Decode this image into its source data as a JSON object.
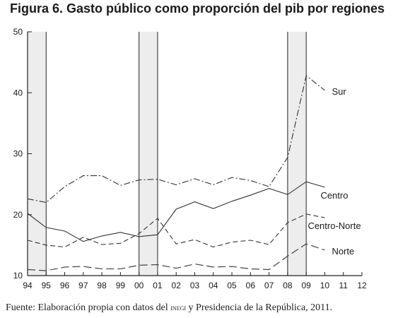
{
  "title": "Figura 6. Gasto público como proporción del pib por regiones",
  "source": {
    "prefix": "Fuente: Elaboración propia con datos del ",
    "inegi": "inegi",
    "suffix": " y Presidencia de la República, 2011."
  },
  "chart_data": {
    "type": "line",
    "title": "Figura 6. Gasto público como proporción del pib por regiones",
    "xlabel": "",
    "ylabel": "",
    "categories": [
      "94",
      "95",
      "96",
      "97",
      "98",
      "99",
      "00",
      "01",
      "02",
      "03",
      "04",
      "05",
      "06",
      "07",
      "08",
      "09",
      "10",
      "11",
      "12"
    ],
    "ylim": [
      10,
      50
    ],
    "yticks": [
      10,
      20,
      30,
      40,
      50
    ],
    "grid": false,
    "shaded_periods": [
      [
        "94",
        "95"
      ],
      [
        "00",
        "01"
      ],
      [
        "08",
        "09"
      ]
    ],
    "series": [
      {
        "name": "Sur",
        "style": "dash-dot",
        "values": [
          22.6,
          22.0,
          24.6,
          26.4,
          26.4,
          24.8,
          25.7,
          25.8,
          24.9,
          25.9,
          24.9,
          26.1,
          25.6,
          24.6,
          29.4,
          42.8,
          40.4,
          null,
          null
        ]
      },
      {
        "name": "Centro",
        "style": "solid",
        "values": [
          20.2,
          17.9,
          17.3,
          15.6,
          16.5,
          17.1,
          16.4,
          16.7,
          20.9,
          22.1,
          21.0,
          22.2,
          23.2,
          24.3,
          23.3,
          25.4,
          24.5,
          null,
          null
        ]
      },
      {
        "name": "Centro-Norte",
        "style": "dashed",
        "values": [
          15.8,
          15.0,
          14.7,
          16.3,
          15.1,
          15.3,
          16.9,
          19.4,
          15.2,
          15.9,
          14.7,
          15.5,
          15.8,
          15.1,
          18.7,
          20.1,
          19.5,
          null,
          null
        ]
      },
      {
        "name": "Norte",
        "style": "long-dash",
        "values": [
          11.0,
          10.8,
          11.4,
          11.5,
          11.1,
          11.1,
          11.7,
          11.8,
          11.2,
          11.9,
          11.4,
          11.5,
          11.1,
          11.0,
          13.2,
          15.2,
          14.2,
          null,
          null
        ]
      }
    ],
    "colors": {
      "lines": "#333333",
      "shade": "#ededed",
      "axis": "#222222"
    }
  }
}
